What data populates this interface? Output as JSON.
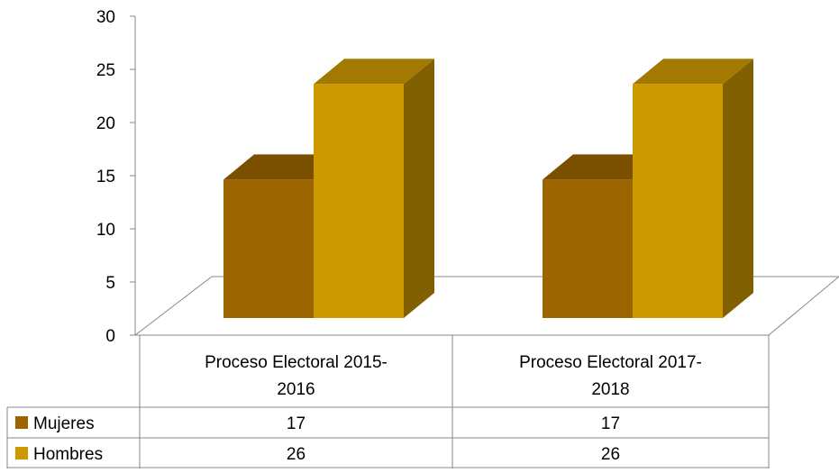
{
  "chart_data": {
    "type": "bar",
    "style": "3d-clustered-column-with-data-table",
    "categories": [
      "Proceso Electoral 2015-2016",
      "Proceso Electoral 2017-2018"
    ],
    "category_lines": [
      [
        "Proceso Electoral 2015-",
        "2016"
      ],
      [
        "Proceso Electoral 2017-",
        "2018"
      ]
    ],
    "series": [
      {
        "name": "Mujeres",
        "values": [
          17,
          17
        ],
        "color": "#9C6500",
        "top_color": "#7A4F00",
        "side_color": "#6E4700"
      },
      {
        "name": "Hombres",
        "values": [
          26,
          26
        ],
        "color": "#CC9900",
        "top_color": "#A37A00",
        "side_color": "#806000"
      }
    ],
    "ylim": [
      0,
      30
    ],
    "yticks": [
      0,
      5,
      10,
      15,
      20,
      25,
      30
    ],
    "title": "",
    "xlabel": "",
    "ylabel": "",
    "legend": "data-table-left",
    "grid": false
  }
}
